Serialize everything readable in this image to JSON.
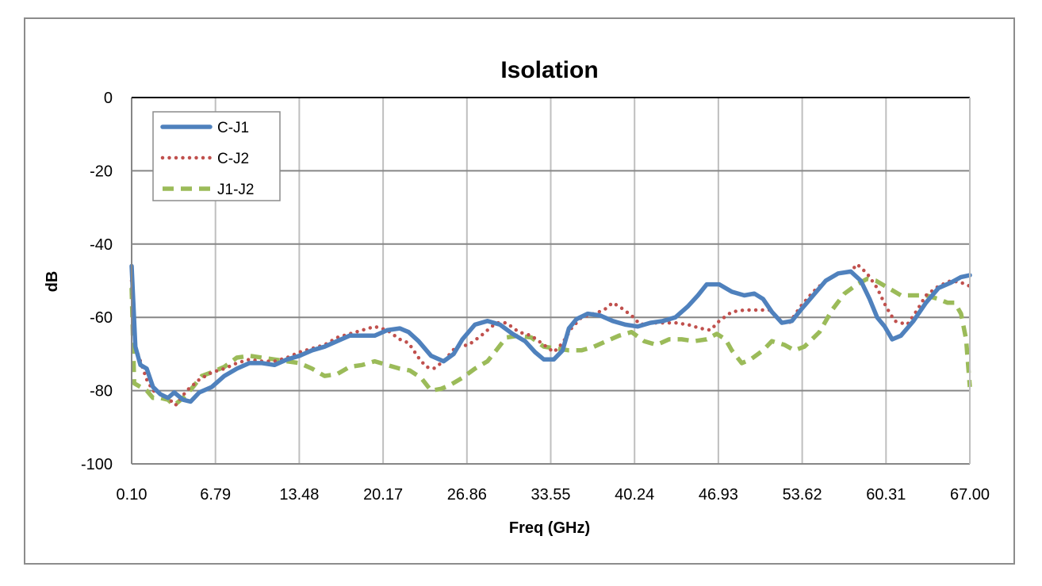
{
  "chart_data": {
    "type": "line",
    "title": "Isolation",
    "xlabel": "Freq (GHz)",
    "ylabel": "dB",
    "xlim": [
      0.1,
      67.0
    ],
    "ylim": [
      -100,
      0
    ],
    "x_ticks": [
      "0.10",
      "6.79",
      "13.48",
      "20.17",
      "26.86",
      "33.55",
      "40.24",
      "46.93",
      "53.62",
      "60.31",
      "67.00"
    ],
    "y_ticks": [
      "0",
      "-20",
      "-40",
      "-60",
      "-80",
      "-100"
    ],
    "grid": true,
    "legend_position": "top-left",
    "series": [
      {
        "name": "C-J1",
        "color": "#4f81bd",
        "style": "solid",
        "points": [
          [
            0.1,
            -46
          ],
          [
            0.4,
            -68
          ],
          [
            0.8,
            -73
          ],
          [
            1.3,
            -74
          ],
          [
            1.8,
            -79
          ],
          [
            2.4,
            -81
          ],
          [
            3.0,
            -82
          ],
          [
            3.5,
            -80.5
          ],
          [
            4.2,
            -82.5
          ],
          [
            4.8,
            -83
          ],
          [
            5.5,
            -80.5
          ],
          [
            6.5,
            -79
          ],
          [
            7.5,
            -76
          ],
          [
            8.5,
            -74
          ],
          [
            9.5,
            -72.5
          ],
          [
            10.5,
            -72.5
          ],
          [
            11.5,
            -73
          ],
          [
            12.5,
            -71.5
          ],
          [
            13.5,
            -70.5
          ],
          [
            14.5,
            -69
          ],
          [
            15.5,
            -68
          ],
          [
            16.5,
            -66.5
          ],
          [
            17.5,
            -65
          ],
          [
            18.5,
            -65
          ],
          [
            19.5,
            -65
          ],
          [
            20.5,
            -63.5
          ],
          [
            21.5,
            -63
          ],
          [
            22.2,
            -64
          ],
          [
            23.0,
            -66.5
          ],
          [
            24.0,
            -70.5
          ],
          [
            25.0,
            -72
          ],
          [
            25.8,
            -70
          ],
          [
            26.5,
            -66
          ],
          [
            27.5,
            -62
          ],
          [
            28.5,
            -61
          ],
          [
            29.5,
            -62
          ],
          [
            30.5,
            -64.5
          ],
          [
            31.5,
            -66.5
          ],
          [
            32.3,
            -69.5
          ],
          [
            33.0,
            -71.5
          ],
          [
            33.8,
            -71.5
          ],
          [
            34.5,
            -69
          ],
          [
            35.0,
            -63
          ],
          [
            35.6,
            -60.5
          ],
          [
            36.5,
            -59
          ],
          [
            37.5,
            -59.5
          ],
          [
            38.5,
            -61
          ],
          [
            39.5,
            -62
          ],
          [
            40.5,
            -62.5
          ],
          [
            41.5,
            -61.5
          ],
          [
            42.5,
            -61
          ],
          [
            43.5,
            -60
          ],
          [
            44.5,
            -57
          ],
          [
            45.3,
            -54
          ],
          [
            46.0,
            -51
          ],
          [
            47.0,
            -51
          ],
          [
            48.0,
            -53
          ],
          [
            49.0,
            -54
          ],
          [
            49.8,
            -53.5
          ],
          [
            50.5,
            -55
          ],
          [
            51.2,
            -58.5
          ],
          [
            52.0,
            -61.5
          ],
          [
            52.8,
            -61
          ],
          [
            53.5,
            -58
          ],
          [
            54.5,
            -54
          ],
          [
            55.5,
            -50
          ],
          [
            56.5,
            -48
          ],
          [
            57.5,
            -47.5
          ],
          [
            58.3,
            -50
          ],
          [
            59.0,
            -55
          ],
          [
            59.6,
            -60
          ],
          [
            60.2,
            -62.5
          ],
          [
            60.8,
            -66
          ],
          [
            61.5,
            -65
          ],
          [
            62.5,
            -61
          ],
          [
            63.5,
            -56
          ],
          [
            64.5,
            -52
          ],
          [
            65.5,
            -50.5
          ],
          [
            66.3,
            -49
          ],
          [
            67.0,
            -48.5
          ]
        ]
      },
      {
        "name": "C-J2",
        "color": "#c0504d",
        "style": "dotted",
        "points": [
          [
            0.1,
            -50
          ],
          [
            0.4,
            -68
          ],
          [
            0.8,
            -72
          ],
          [
            1.3,
            -77
          ],
          [
            1.8,
            -80
          ],
          [
            2.4,
            -81
          ],
          [
            3.0,
            -82
          ],
          [
            3.6,
            -84
          ],
          [
            4.5,
            -80
          ],
          [
            5.5,
            -77
          ],
          [
            6.5,
            -75
          ],
          [
            7.5,
            -74
          ],
          [
            8.5,
            -72.5
          ],
          [
            9.5,
            -71.5
          ],
          [
            10.5,
            -72
          ],
          [
            11.5,
            -72
          ],
          [
            12.5,
            -71
          ],
          [
            13.5,
            -69.5
          ],
          [
            14.5,
            -68.5
          ],
          [
            15.5,
            -67.5
          ],
          [
            16.5,
            -65.5
          ],
          [
            17.5,
            -64.5
          ],
          [
            18.5,
            -63.5
          ],
          [
            19.5,
            -62.5
          ],
          [
            20.5,
            -63.5
          ],
          [
            21.5,
            -66
          ],
          [
            22.2,
            -67
          ],
          [
            23.0,
            -71
          ],
          [
            23.6,
            -73.5
          ],
          [
            24.2,
            -74
          ],
          [
            25.0,
            -72
          ],
          [
            26.0,
            -68
          ],
          [
            27.0,
            -67.5
          ],
          [
            28.0,
            -65
          ],
          [
            28.5,
            -63.5
          ],
          [
            29.2,
            -61.5
          ],
          [
            30.0,
            -61.5
          ],
          [
            31.0,
            -64
          ],
          [
            32.0,
            -65
          ],
          [
            33.0,
            -67.5
          ],
          [
            33.8,
            -69.5
          ],
          [
            34.5,
            -67
          ],
          [
            35.2,
            -63
          ],
          [
            36.0,
            -60
          ],
          [
            37.0,
            -59
          ],
          [
            37.8,
            -58
          ],
          [
            38.5,
            -56
          ],
          [
            39.2,
            -57.5
          ],
          [
            40.0,
            -59.5
          ],
          [
            40.7,
            -62
          ],
          [
            41.5,
            -61.5
          ],
          [
            42.5,
            -61.5
          ],
          [
            43.5,
            -61.5
          ],
          [
            44.5,
            -62
          ],
          [
            45.5,
            -63
          ],
          [
            46.3,
            -63.5
          ],
          [
            47.0,
            -61
          ],
          [
            48.0,
            -58.5
          ],
          [
            49.0,
            -58
          ],
          [
            50.0,
            -58
          ],
          [
            51.0,
            -58
          ],
          [
            51.8,
            -60.5
          ],
          [
            52.5,
            -62
          ],
          [
            53.5,
            -57
          ],
          [
            54.5,
            -53
          ],
          [
            55.5,
            -50
          ],
          [
            56.5,
            -48
          ],
          [
            57.5,
            -47.5
          ],
          [
            58.0,
            -45.5
          ],
          [
            58.8,
            -48
          ],
          [
            59.6,
            -52
          ],
          [
            60.3,
            -57
          ],
          [
            61.0,
            -61
          ],
          [
            62.0,
            -62
          ],
          [
            62.8,
            -58
          ],
          [
            63.5,
            -54
          ],
          [
            64.5,
            -51.5
          ],
          [
            65.5,
            -50
          ],
          [
            66.3,
            -50.5
          ],
          [
            67.0,
            -51.5
          ]
        ]
      },
      {
        "name": "J1-J2",
        "color": "#9bbb59",
        "style": "dashed",
        "points": [
          [
            0.1,
            -52
          ],
          [
            0.3,
            -78
          ],
          [
            0.8,
            -79
          ],
          [
            1.3,
            -80
          ],
          [
            1.8,
            -82
          ],
          [
            2.4,
            -82
          ],
          [
            3.0,
            -82.5
          ],
          [
            3.5,
            -84
          ],
          [
            4.2,
            -82
          ],
          [
            5.0,
            -79
          ],
          [
            5.7,
            -76
          ],
          [
            6.5,
            -75
          ],
          [
            7.5,
            -73.5
          ],
          [
            8.5,
            -71
          ],
          [
            9.5,
            -70.5
          ],
          [
            10.5,
            -71
          ],
          [
            11.5,
            -71.5
          ],
          [
            12.5,
            -72
          ],
          [
            13.5,
            -72.5
          ],
          [
            14.5,
            -74
          ],
          [
            15.5,
            -76
          ],
          [
            16.5,
            -75.5
          ],
          [
            17.5,
            -73.5
          ],
          [
            18.5,
            -73
          ],
          [
            19.5,
            -72
          ],
          [
            20.5,
            -73
          ],
          [
            21.5,
            -74
          ],
          [
            22.3,
            -74.5
          ],
          [
            23.2,
            -76.5
          ],
          [
            24.0,
            -80
          ],
          [
            24.8,
            -79.5
          ],
          [
            25.5,
            -78.5
          ],
          [
            26.5,
            -76.5
          ],
          [
            27.5,
            -74
          ],
          [
            28.5,
            -72
          ],
          [
            29.2,
            -69
          ],
          [
            30.0,
            -65.5
          ],
          [
            31.0,
            -65
          ],
          [
            32.0,
            -65.5
          ],
          [
            33.0,
            -68
          ],
          [
            34.0,
            -68.5
          ],
          [
            35.0,
            -69
          ],
          [
            36.0,
            -69
          ],
          [
            37.0,
            -68
          ],
          [
            38.0,
            -66.5
          ],
          [
            39.0,
            -65
          ],
          [
            40.0,
            -64
          ],
          [
            41.0,
            -66.5
          ],
          [
            42.0,
            -67.5
          ],
          [
            43.0,
            -66
          ],
          [
            44.0,
            -66
          ],
          [
            45.0,
            -66.5
          ],
          [
            46.0,
            -66
          ],
          [
            46.8,
            -64.5
          ],
          [
            47.5,
            -66
          ],
          [
            48.0,
            -69
          ],
          [
            48.8,
            -72.5
          ],
          [
            49.5,
            -71.5
          ],
          [
            50.5,
            -69
          ],
          [
            51.2,
            -66.5
          ],
          [
            52.2,
            -67.5
          ],
          [
            53.0,
            -69
          ],
          [
            53.8,
            -68
          ],
          [
            55.0,
            -64
          ],
          [
            56.0,
            -58
          ],
          [
            57.0,
            -53.5
          ],
          [
            58.0,
            -51
          ],
          [
            58.8,
            -49.5
          ],
          [
            59.5,
            -50
          ],
          [
            60.5,
            -52
          ],
          [
            61.5,
            -54
          ],
          [
            62.5,
            -54
          ],
          [
            63.5,
            -54
          ],
          [
            64.5,
            -55
          ],
          [
            65.2,
            -56
          ],
          [
            65.8,
            -56
          ],
          [
            66.3,
            -59
          ],
          [
            66.7,
            -66
          ],
          [
            67.0,
            -79
          ]
        ]
      }
    ]
  }
}
